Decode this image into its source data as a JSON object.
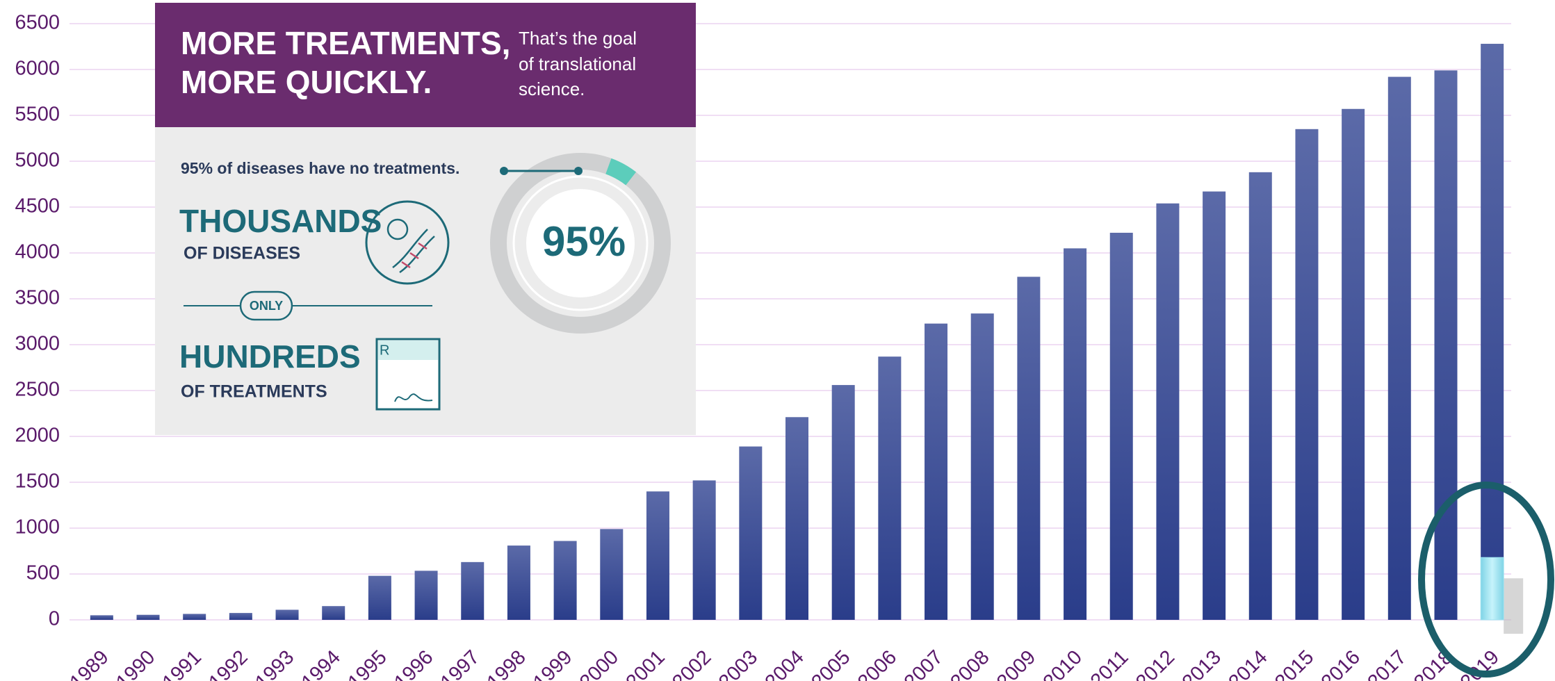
{
  "chart_data": {
    "type": "bar",
    "categories": [
      "1989",
      "1990",
      "1991",
      "1992",
      "1993",
      "1994",
      "1995",
      "1996",
      "1997",
      "1998",
      "1999",
      "2000",
      "2001",
      "2002",
      "2003",
      "2004",
      "2005",
      "2006",
      "2007",
      "2008",
      "2009",
      "2010",
      "2011",
      "2012",
      "2013",
      "2014",
      "2015",
      "2016",
      "2017",
      "2018",
      "2019"
    ],
    "values": [
      50,
      55,
      65,
      75,
      110,
      150,
      480,
      535,
      630,
      810,
      860,
      990,
      1400,
      1520,
      1890,
      2210,
      2560,
      2870,
      3230,
      3340,
      3740,
      4050,
      4220,
      4540,
      4670,
      4880,
      5350,
      5570,
      5920,
      5990,
      6280
    ],
    "color": "#2f448e",
    "highlight": {
      "index": 30,
      "value": 680,
      "color": "#9fe3f0"
    },
    "ylim": [
      0,
      6500
    ],
    "yticks": [
      0,
      500,
      1000,
      1500,
      2000,
      2500,
      3000,
      3500,
      4000,
      4500,
      5000,
      5500,
      6000,
      6500
    ],
    "grid": true
  },
  "inset": {
    "title": [
      "MORE TREATMENTS,",
      "MORE QUICKLY."
    ],
    "subtitle": [
      "That’s the goal",
      "of translational",
      "science."
    ],
    "note": "95% of diseases have no treatments.",
    "big1": "THOUSANDS",
    "small1": "OF DISEASES",
    "connector": "ONLY",
    "big2": "HUNDREDS",
    "small2": "OF TREATMENTS",
    "donut": {
      "value": 95,
      "label": "95%"
    }
  }
}
